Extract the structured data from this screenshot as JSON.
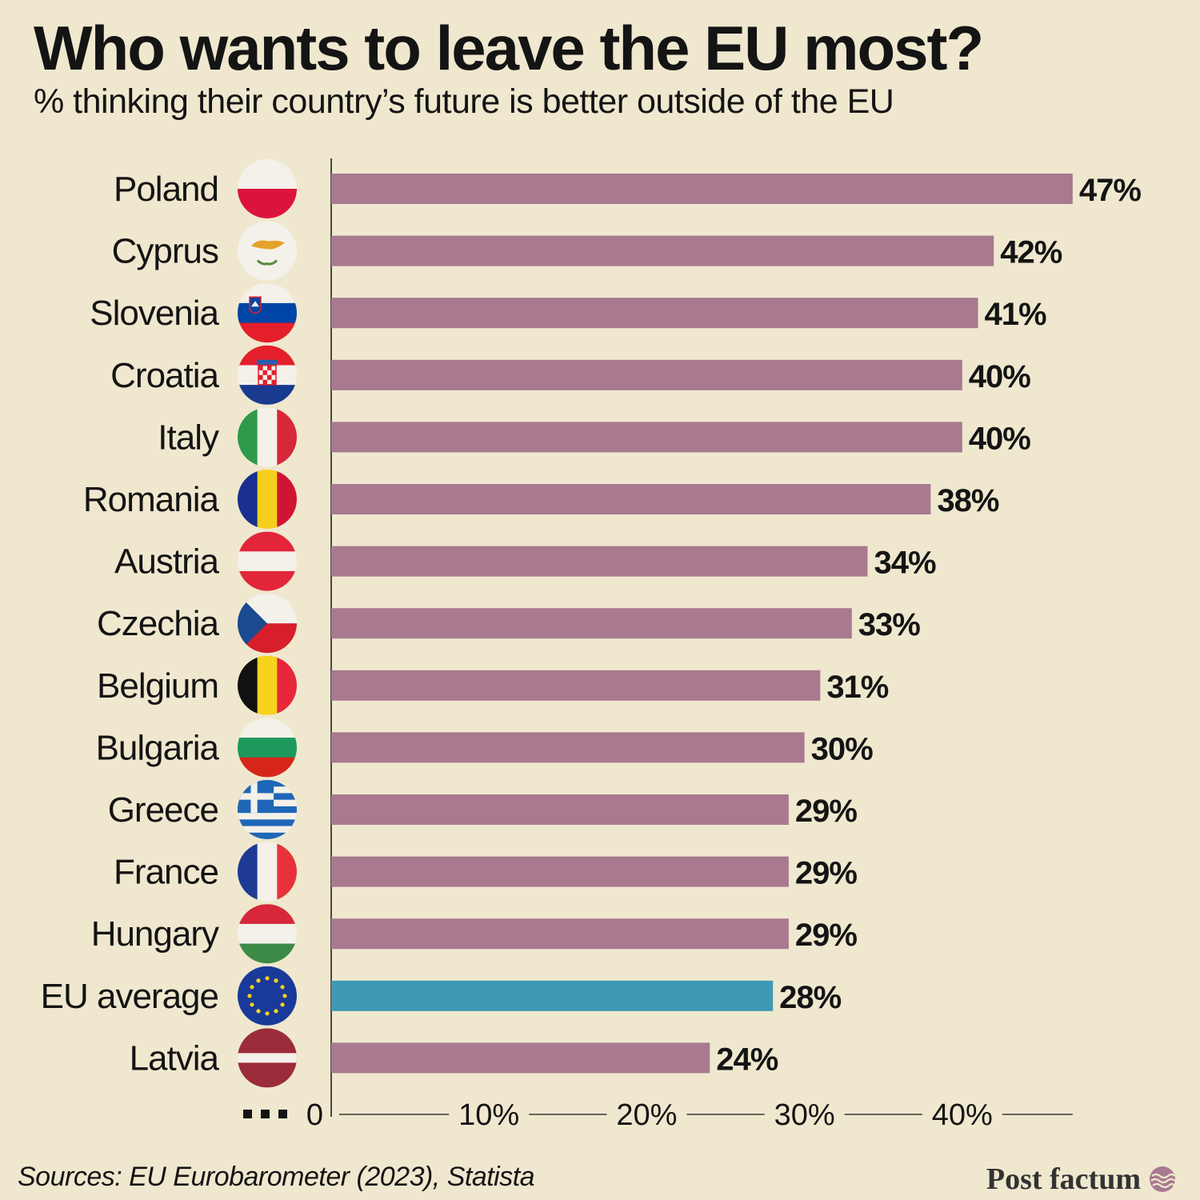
{
  "header": {
    "title": "Who wants to leave the EU most?",
    "subtitle": "% thinking their country’s future is better outside of the EU"
  },
  "chart_data": {
    "type": "bar",
    "orientation": "horizontal",
    "categories": [
      "Poland",
      "Cyprus",
      "Slovenia",
      "Croatia",
      "Italy",
      "Romania",
      "Austria",
      "Czechia",
      "Belgium",
      "Bulgaria",
      "Greece",
      "France",
      "Hungary",
      "EU average",
      "Latvia"
    ],
    "values": [
      47,
      42,
      41,
      40,
      40,
      38,
      34,
      33,
      31,
      30,
      29,
      29,
      29,
      28,
      24
    ],
    "value_labels": [
      "47%",
      "42%",
      "41%",
      "40%",
      "40%",
      "38%",
      "34%",
      "33%",
      "31%",
      "30%",
      "29%",
      "29%",
      "29%",
      "28%",
      "24%"
    ],
    "flag_icons": [
      "poland-flag-icon",
      "cyprus-flag-icon",
      "slovenia-flag-icon",
      "croatia-flag-icon",
      "italy-flag-icon",
      "romania-flag-icon",
      "austria-flag-icon",
      "czechia-flag-icon",
      "belgium-flag-icon",
      "bulgaria-flag-icon",
      "greece-flag-icon",
      "france-flag-icon",
      "hungary-flag-icon",
      "eu-flag-icon",
      "latvia-flag-icon"
    ],
    "highlight_category": "EU average",
    "xlim": [
      0,
      47
    ],
    "x_ticks": [
      0,
      10,
      20,
      30,
      40
    ],
    "x_tick_labels": [
      "0",
      "10%",
      "20%",
      "30%",
      "40%"
    ],
    "grid": false,
    "colors": {
      "bar": "#a8798f",
      "highlight_bar": "#3d99b5",
      "background": "#efe8cf",
      "text": "#141414"
    }
  },
  "footer": {
    "source": "Sources: EU Eurobarometer (2023), Statista",
    "brand": "Post factum"
  }
}
